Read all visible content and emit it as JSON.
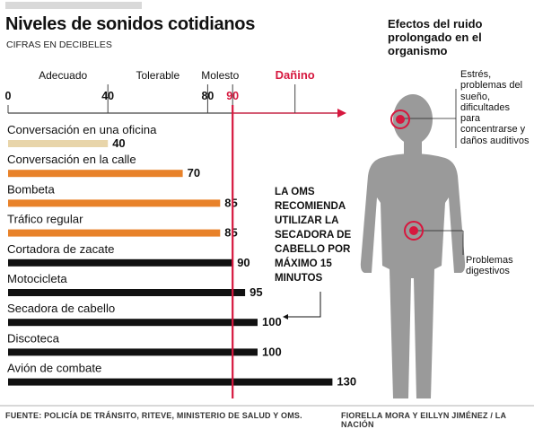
{
  "header": {
    "title": "Niveles de sonidos cotidianos",
    "subtitle": "CIFRAS EN DECIBELES"
  },
  "effects": {
    "title": "Efectos del ruido prolongado en el organismo",
    "head_note": "Estrés, problemas del sueño, dificultades para concentrarse y daños auditivos",
    "stomach_note": "Problemas digestivos"
  },
  "oms_note": "LA OMS RECOMIENDA UTILIZAR LA SECADORA DE CABELLO POR MÁXIMO 15 MINUTOS",
  "footer": {
    "source": "FUENTE: POLICÍA DE TRÁNSITO, RITEVE, MINISTERIO DE SALUD Y OMS.",
    "credit": "FIORELLA MORA Y  EILLYN JIMÉNEZ / LA NACIÓN"
  },
  "colors": {
    "beige": "#e8d5aa",
    "orange": "#e8822a",
    "black": "#111111",
    "red": "#d6173e",
    "body": "#9a9a9a",
    "axis": "#444444"
  },
  "chart_data": {
    "type": "bar",
    "orientation": "horizontal",
    "xlim": [
      0,
      130
    ],
    "ticks": [
      {
        "value": 0,
        "label": "0"
      },
      {
        "value": 40,
        "label": "40"
      },
      {
        "value": 80,
        "label": "80"
      },
      {
        "value": 90,
        "label": "90"
      }
    ],
    "zones": [
      {
        "label": "Adecuado",
        "center": 22,
        "color": "black"
      },
      {
        "label": "Tolerable",
        "center": 60,
        "color": "black"
      },
      {
        "label": "Molesto",
        "center": 85,
        "color": "black"
      },
      {
        "label": "Dañino",
        "center": 115,
        "color": "red"
      }
    ],
    "zone_dividers": [
      40,
      80,
      90,
      115
    ],
    "threshold": 90,
    "categories": [
      "Conversación en una oficina",
      "Conversación en la calle",
      "Bombeta",
      "Tráfico regular",
      "Cortadora de zacate",
      "Motocicleta",
      "Secadora de cabello",
      "Discoteca",
      "Avión de combate"
    ],
    "values": [
      40,
      70,
      85,
      85,
      90,
      95,
      100,
      100,
      130
    ],
    "value_labels": [
      "40",
      "70",
      "85",
      "85",
      "90",
      "95",
      "100",
      "100",
      "130"
    ],
    "bar_colors": [
      "beige",
      "orange",
      "orange",
      "orange",
      "black",
      "black",
      "black",
      "black",
      "black"
    ]
  }
}
